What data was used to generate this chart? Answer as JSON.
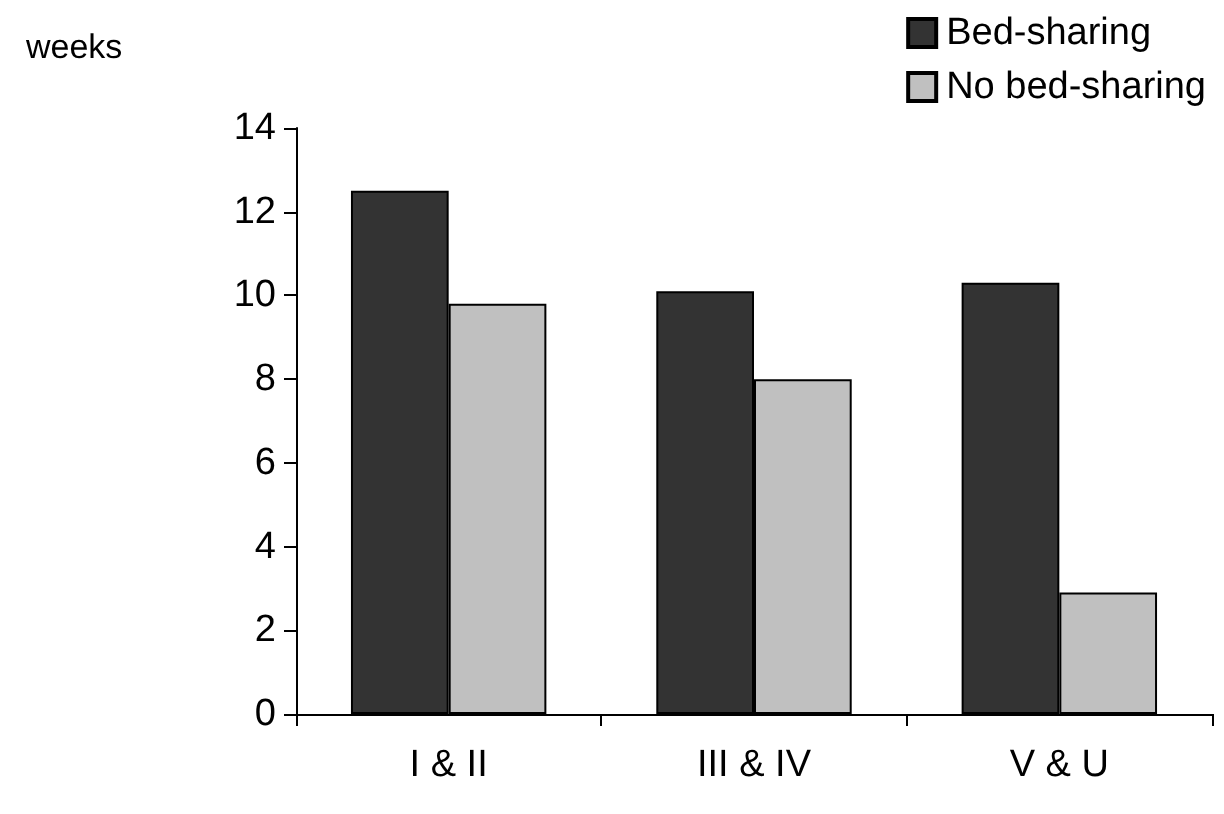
{
  "chart_data": {
    "type": "bar",
    "ylabel": "weeks",
    "categories": [
      "I & II",
      "III & IV",
      "V & U"
    ],
    "series": [
      {
        "name": "Bed-sharing",
        "color": "#333333",
        "values": [
          12.5,
          10.1,
          10.3
        ]
      },
      {
        "name": "No bed-sharing",
        "color": "#c0c0c0",
        "values": [
          9.8,
          8.0,
          2.9
        ]
      }
    ],
    "ylim": [
      0,
      14
    ],
    "yticks": [
      0,
      2,
      4,
      6,
      8,
      10,
      12,
      14
    ],
    "grid": false,
    "legend": "top right"
  }
}
